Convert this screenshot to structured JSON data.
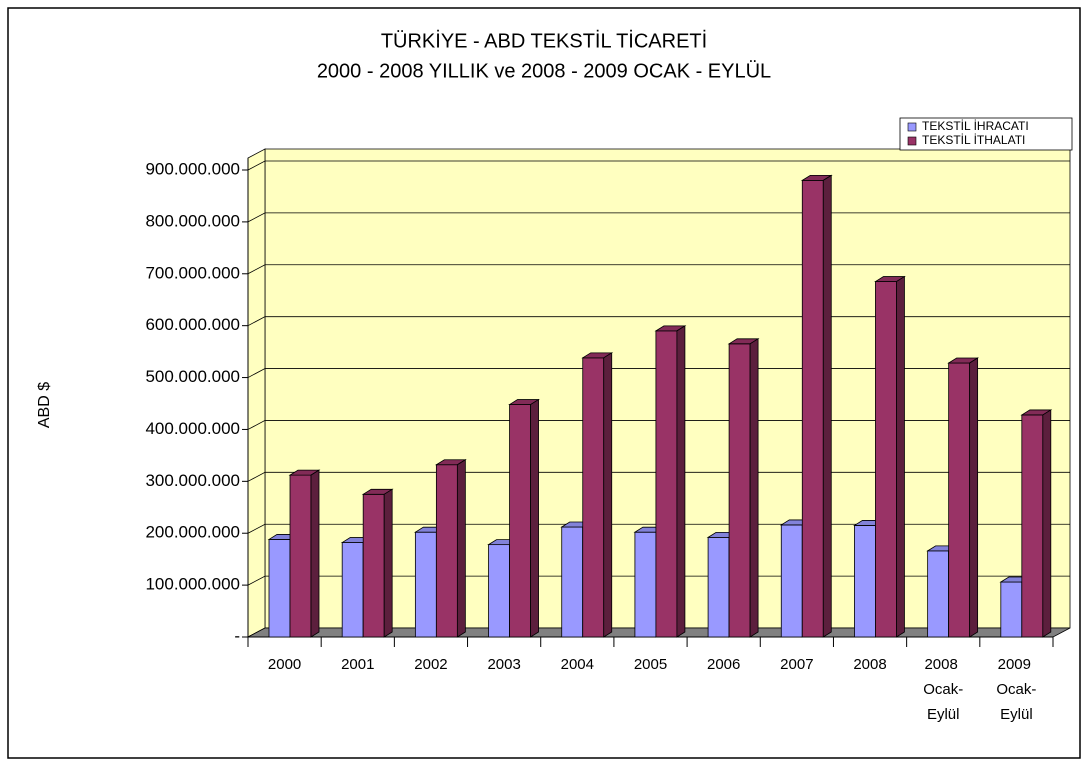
{
  "chart_data": {
    "type": "bar3d",
    "title": "TÜRKİYE - ABD TEKSTİL TİCARETİ",
    "subtitle": "2000 - 2008 YILLIK ve 2008 - 2009 OCAK - EYLÜL",
    "y_label": "ABD $",
    "categories": [
      "2000",
      "2001",
      "2002",
      "2003",
      "2004",
      "2005",
      "2006",
      "2007",
      "2008",
      "2008 Ocak-Eylül",
      "2009 Ocak-Eylül"
    ],
    "series": [
      {
        "name": "TEKSTİL İHRACATI",
        "color": "#9999ff",
        "values": [
          188000000,
          182000000,
          202000000,
          178000000,
          212000000,
          202000000,
          192000000,
          216000000,
          215000000,
          166000000,
          106000000
        ]
      },
      {
        "name": "TEKSTİL İTHALATI",
        "color": "#993366",
        "values": [
          312000000,
          275000000,
          332000000,
          448000000,
          538000000,
          590000000,
          565000000,
          880000000,
          685000000,
          528000000,
          428000000
        ]
      }
    ],
    "ylim": [
      0,
      900000000
    ],
    "yticks": [
      {
        "value": 0,
        "label": "-"
      },
      {
        "value": 100000000,
        "label": "100.000.000"
      },
      {
        "value": 200000000,
        "label": "200.000.000"
      },
      {
        "value": 300000000,
        "label": "300.000.000"
      },
      {
        "value": 400000000,
        "label": "400.000.000"
      },
      {
        "value": 500000000,
        "label": "500.000.000"
      },
      {
        "value": 600000000,
        "label": "600.000.000"
      },
      {
        "value": 700000000,
        "label": "700.000.000"
      },
      {
        "value": 800000000,
        "label": "800.000.000"
      },
      {
        "value": 900000000,
        "label": "900.000.000"
      }
    ],
    "grid": true,
    "legend": "top-right",
    "wall_color": "#ffffc0",
    "floor_color": "#808080"
  }
}
